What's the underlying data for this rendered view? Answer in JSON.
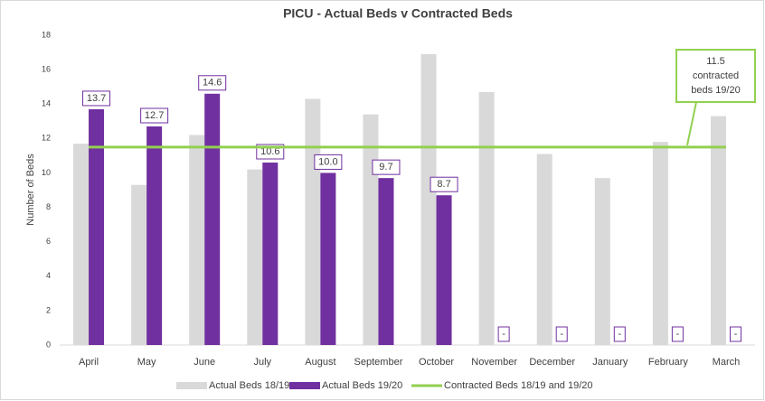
{
  "chart_data": {
    "type": "bar",
    "title": "PICU - Actual Beds v Contracted Beds",
    "y_label": "Number of Beds",
    "categories": [
      "April",
      "May",
      "June",
      "July",
      "August",
      "September",
      "October",
      "November",
      "December",
      "January",
      "February",
      "March"
    ],
    "series": [
      {
        "name": "Actual Beds 18/19",
        "color": "#d9d9d9",
        "values": [
          11.7,
          9.3,
          12.2,
          10.2,
          14.3,
          13.4,
          16.9,
          14.7,
          11.1,
          9.7,
          11.8,
          13.3
        ]
      },
      {
        "name": "Actual Beds 19/20",
        "color": "#7030a0",
        "values": [
          13.7,
          12.7,
          14.6,
          10.6,
          10.0,
          9.7,
          8.7,
          null,
          null,
          null,
          null,
          null
        ],
        "value_labels": [
          "13.7",
          "12.7",
          "14.6",
          "10.6",
          "10.0",
          "9.7",
          "8.7",
          "-",
          "-",
          "-",
          "-",
          "-"
        ]
      },
      {
        "name": "Contracted Beds 18/19 and 19/20",
        "type": "line",
        "color": "#92d050",
        "values": [
          11.5,
          11.5,
          11.5,
          11.5,
          11.5,
          11.5,
          11.5,
          11.5,
          11.5,
          11.5,
          11.5,
          11.5
        ]
      }
    ],
    "annotation": [
      "11.5",
      "contracted",
      "beds 19/20"
    ],
    "ylim": [
      0,
      18
    ],
    "yticks": [
      0,
      2,
      4,
      6,
      8,
      10,
      12,
      14,
      16,
      18
    ],
    "grid": false,
    "legend": "bottom"
  }
}
